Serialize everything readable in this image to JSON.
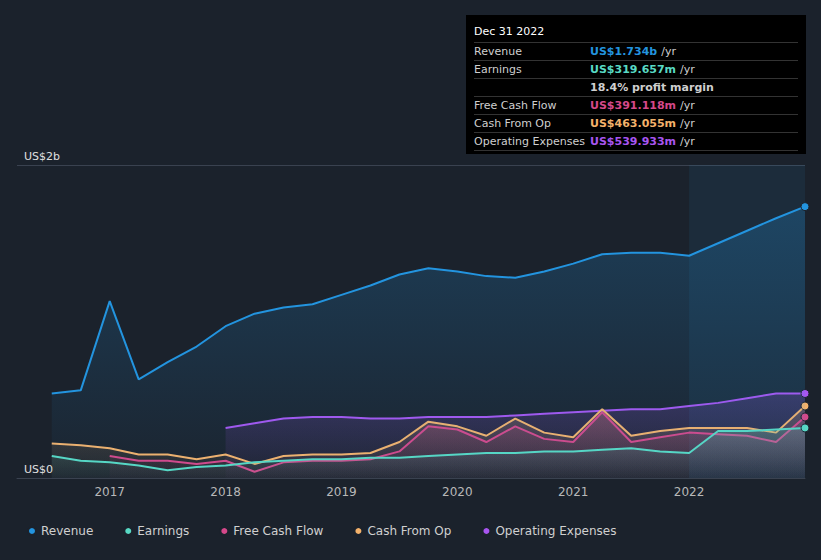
{
  "chart_data": {
    "type": "area",
    "x": [
      2016.5,
      2016.75,
      2017,
      2017.25,
      2017.5,
      2017.75,
      2018,
      2018.25,
      2018.5,
      2018.75,
      2019,
      2019.25,
      2019.5,
      2019.75,
      2020,
      2020.25,
      2020.5,
      2020.75,
      2021,
      2021.25,
      2021.5,
      2021.75,
      2022,
      2022.25,
      2022.5,
      2022.75,
      2023
    ],
    "xlim": [
      2016.2,
      2023.0
    ],
    "xticks": [
      2017,
      2018,
      2019,
      2020,
      2021,
      2022
    ],
    "ylim": [
      0,
      2
    ],
    "yticks": [
      {
        "value": 0,
        "label": "US$0"
      },
      {
        "value": 2,
        "label": "US$2b"
      }
    ],
    "grid": true,
    "legend": "bottom-left",
    "series": [
      {
        "name": "Revenue",
        "color": "#2394df",
        "values": [
          0.54,
          0.56,
          1.13,
          0.63,
          0.74,
          0.84,
          0.97,
          1.05,
          1.09,
          1.11,
          1.17,
          1.23,
          1.3,
          1.34,
          1.32,
          1.29,
          1.28,
          1.32,
          1.37,
          1.43,
          1.44,
          1.44,
          1.42,
          1.5,
          1.58,
          1.66,
          1.734
        ]
      },
      {
        "name": "Earnings",
        "color": "#58d9c4",
        "values": [
          0.14,
          0.11,
          0.1,
          0.08,
          0.05,
          0.07,
          0.08,
          0.1,
          0.11,
          0.12,
          0.12,
          0.13,
          0.13,
          0.14,
          0.15,
          0.16,
          0.16,
          0.17,
          0.17,
          0.18,
          0.19,
          0.17,
          0.16,
          0.3,
          0.3,
          0.31,
          0.32
        ]
      },
      {
        "name": "Free Cash Flow",
        "color": "#d5488a",
        "values": [
          null,
          null,
          0.14,
          0.11,
          0.11,
          0.09,
          0.11,
          0.04,
          0.1,
          0.11,
          0.11,
          0.12,
          0.17,
          0.33,
          0.31,
          0.23,
          0.33,
          0.25,
          0.23,
          0.42,
          0.23,
          0.26,
          0.29,
          0.28,
          0.27,
          0.23,
          0.39
        ]
      },
      {
        "name": "Cash From Op",
        "color": "#f4b26b",
        "values": [
          0.22,
          0.21,
          0.19,
          0.15,
          0.15,
          0.12,
          0.15,
          0.09,
          0.14,
          0.15,
          0.15,
          0.16,
          0.23,
          0.36,
          0.33,
          0.27,
          0.38,
          0.29,
          0.26,
          0.44,
          0.27,
          0.3,
          0.32,
          0.32,
          0.32,
          0.29,
          0.46
        ]
      },
      {
        "name": "Operating Expenses",
        "color": "#a855f0",
        "values": [
          null,
          null,
          null,
          null,
          null,
          null,
          0.32,
          0.35,
          0.38,
          0.39,
          0.39,
          0.38,
          0.38,
          0.39,
          0.39,
          0.39,
          0.4,
          0.41,
          0.42,
          0.43,
          0.44,
          0.44,
          0.46,
          0.48,
          0.51,
          0.54,
          0.54
        ]
      }
    ],
    "annotation": {
      "title": "Dec 31 2022",
      "rows": [
        {
          "label": "Revenue",
          "value": "US$1.734b",
          "unit": "/yr"
        },
        {
          "label": "Earnings",
          "value": "US$319.657m",
          "unit": "/yr"
        },
        {
          "value": "18.4% profit margin"
        },
        {
          "label": "Free Cash Flow",
          "value": "US$391.118m",
          "unit": "/yr"
        },
        {
          "label": "Cash From Op",
          "value": "US$463.055m",
          "unit": "/yr"
        },
        {
          "label": "Operating Expenses",
          "value": "US$539.933m",
          "unit": "/yr"
        }
      ]
    }
  }
}
